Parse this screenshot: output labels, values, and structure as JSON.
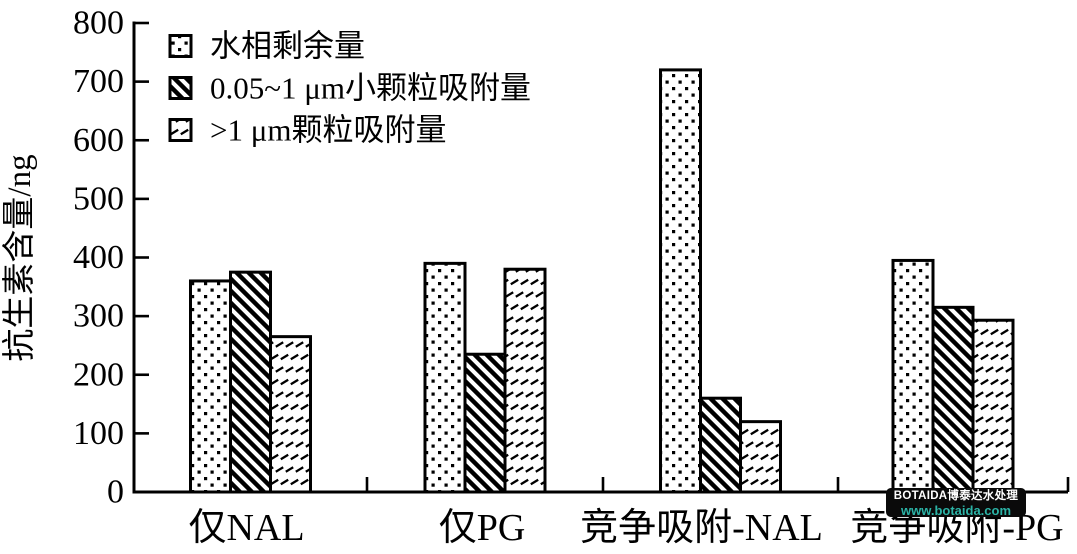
{
  "chart_data": {
    "type": "bar",
    "title": "",
    "xlabel": "",
    "ylabel": "抗生素含量/ng",
    "ylim": [
      0,
      800
    ],
    "yticks": [
      0,
      100,
      200,
      300,
      400,
      500,
      600,
      700,
      800
    ],
    "grid": false,
    "legend_position": "upper-left-inside",
    "bar_color": "#000000",
    "bar_background": "#ffffff",
    "categories": [
      "仅NAL",
      "仅PG",
      "竞争吸附-NAL",
      "竞争吸附-PG"
    ],
    "series": [
      {
        "name": "水相剩余量",
        "pattern": "dots",
        "values": [
          360,
          390,
          720,
          395
        ]
      },
      {
        "name": "0.05~1 μm小颗粒吸附量",
        "pattern": "backslash-hatch",
        "values": [
          375,
          235,
          160,
          315
        ]
      },
      {
        "name": ">1 μm颗粒吸附量",
        "pattern": "slash-dash-hatch",
        "values": [
          265,
          380,
          120,
          293
        ]
      }
    ]
  },
  "watermark": {
    "line1": "BOTAIDA博泰达水处理",
    "line2": "www.botaida.com",
    "url_color": "#2bb3a6",
    "box_color": "#0a0a0a"
  }
}
